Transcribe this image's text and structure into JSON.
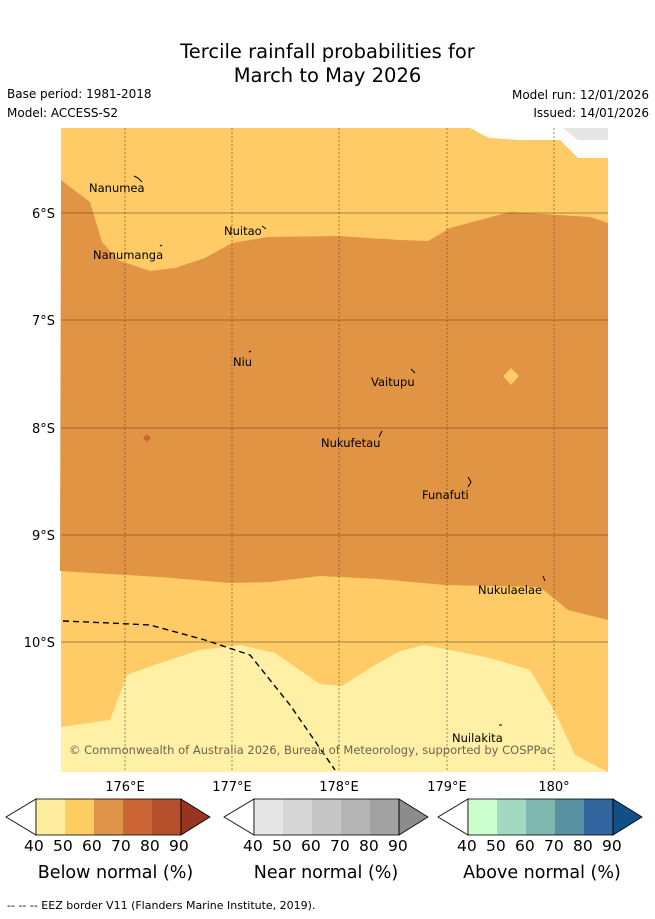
{
  "title": {
    "line1": "Tercile rainfall probabilities for",
    "line2": "March to May 2026"
  },
  "meta": {
    "base_period": "Base period: 1981-2018",
    "model": "Model: ACCESS-S2",
    "model_run": "Model run: 12/01/2026",
    "issued": "Issued: 14/01/2026"
  },
  "map": {
    "x_ticks": [
      "176°E",
      "177°E",
      "178°E",
      "179°E",
      "180°"
    ],
    "y_ticks": [
      "6°S",
      "7°S",
      "8°S",
      "9°S",
      "10°S"
    ],
    "places": [
      "Nanumea",
      "Nuitao",
      "Nanumanga",
      "Niu",
      "Vaitupu",
      "Nukufetau",
      "Funafuti",
      "Nukulaelae",
      "Nuilakita"
    ],
    "copyright": "© Commonwealth of Australia 2026, Bureau of Meteorology, supported by COSPPac"
  },
  "colorbars": [
    {
      "label": "Below normal (%)",
      "ticks": [
        "40",
        "50",
        "60",
        "70",
        "80",
        "90"
      ],
      "colors": [
        "#ffffff",
        "#feeda0",
        "#fecd62",
        "#e0944a",
        "#cc6636",
        "#b34f2a",
        "#993322"
      ]
    },
    {
      "label": "Near normal (%)",
      "ticks": [
        "40",
        "50",
        "60",
        "70",
        "80",
        "90"
      ],
      "colors": [
        "#ffffff",
        "#e6e6e6",
        "#d6d6d6",
        "#c6c6c6",
        "#b4b4b4",
        "#a2a2a2",
        "#8c8c8c"
      ]
    },
    {
      "label": "Above normal (%)",
      "ticks": [
        "40",
        "50",
        "60",
        "70",
        "80",
        "90"
      ],
      "colors": [
        "#ffffff",
        "#ccffcc",
        "#a3d9bf",
        "#80b8b0",
        "#5890a2",
        "#33669e",
        "#124f86"
      ]
    }
  ],
  "footnote": "--  --  -- EEZ border V11 (Flanders Marine Institute, 2019).",
  "palette": {
    "c50": "#fff0a6",
    "c60": "#fecb66",
    "c70": "#e09444",
    "grid": "#6b4e2a"
  }
}
